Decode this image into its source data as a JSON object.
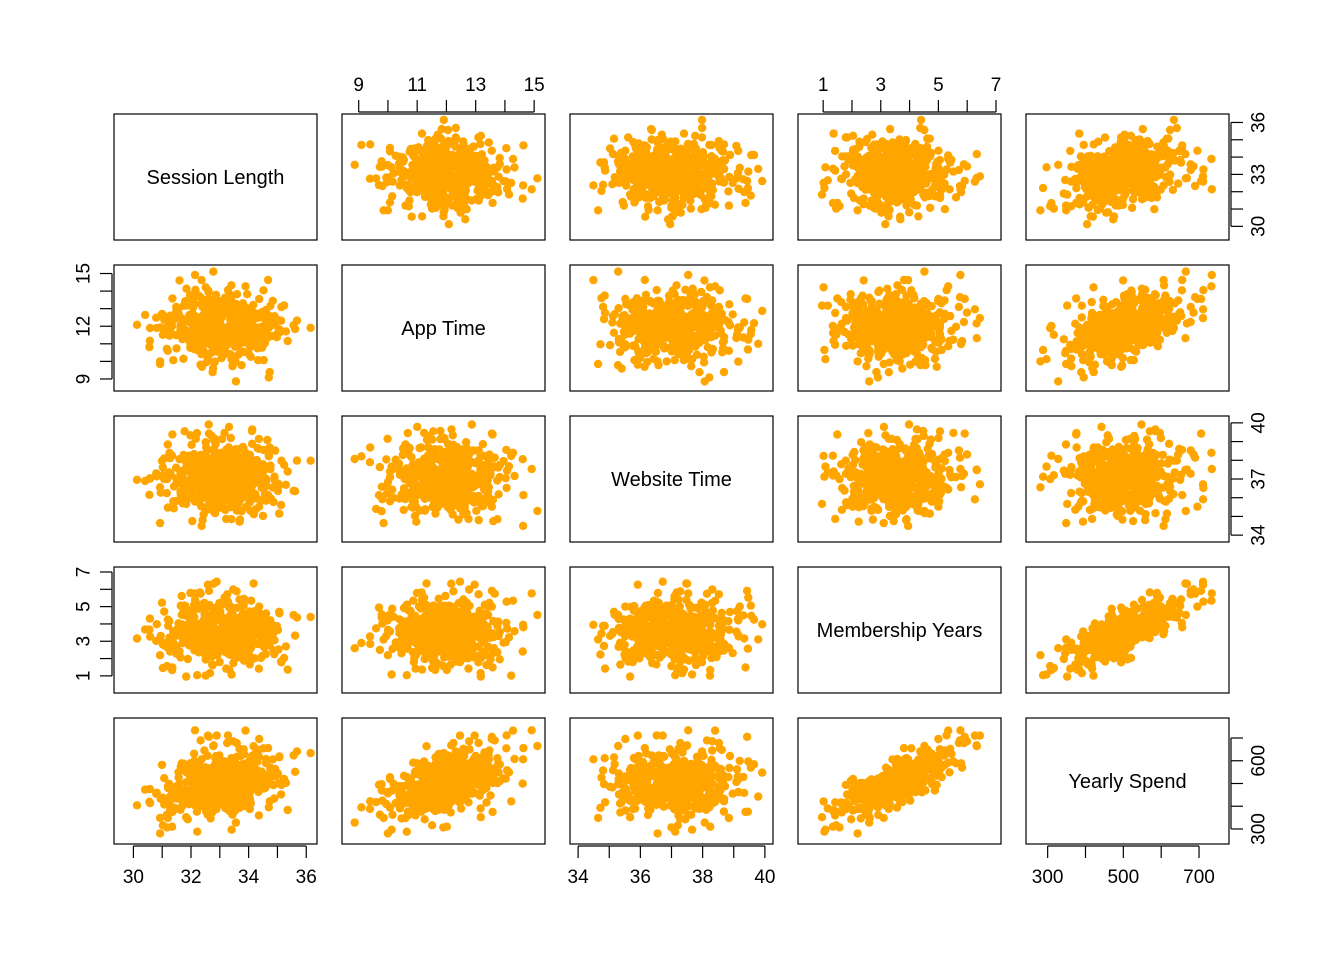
{
  "chart_data": {
    "type": "scatter",
    "kind": "pairs-matrix",
    "point_color": "#FFA500",
    "variables": [
      {
        "name": "Session Length",
        "range": [
          29.5,
          36.2
        ],
        "ticks": [
          30,
          31,
          32,
          33,
          34,
          35,
          36
        ],
        "tick_labels_bottom": [
          "30",
          "32",
          "34",
          "36"
        ],
        "tick_labels_right": [
          "30",
          "33",
          "36"
        ]
      },
      {
        "name": "App Time",
        "range": [
          8.6,
          15.2
        ],
        "ticks": [
          9,
          10,
          11,
          12,
          13,
          14,
          15
        ],
        "tick_labels_top": [
          "9",
          "11",
          "13",
          "15"
        ],
        "tick_labels_left": [
          "9",
          "12",
          "15"
        ]
      },
      {
        "name": "Website Time",
        "range": [
          33.9,
          40.1
        ],
        "ticks": [
          34,
          35,
          36,
          37,
          38,
          39,
          40
        ],
        "tick_labels_bottom": [
          "34",
          "36",
          "38",
          "40"
        ],
        "tick_labels_right": [
          "34",
          "37",
          "40"
        ]
      },
      {
        "name": "Membership Years",
        "range": [
          0.3,
          7.0
        ],
        "ticks": [
          1,
          2,
          3,
          4,
          5,
          6,
          7
        ],
        "tick_labels_top": [
          "1",
          "3",
          "5",
          "7"
        ],
        "tick_labels_left": [
          "1",
          "3",
          "5",
          "7"
        ]
      },
      {
        "name": "Yearly Spend",
        "range": [
          256,
          766
        ],
        "ticks": [
          300,
          400,
          500,
          600,
          700
        ],
        "tick_labels_bottom": [
          "300",
          "500",
          "700"
        ],
        "tick_labels_right": [
          "300",
          "600"
        ]
      }
    ],
    "n_points": 500,
    "correlations_approx": {
      "session_length_vs_yearly_spend": 0.5,
      "app_time_vs_yearly_spend": 0.5,
      "membership_years_vs_yearly_spend": 0.8,
      "other_pairs": 0.0
    }
  }
}
